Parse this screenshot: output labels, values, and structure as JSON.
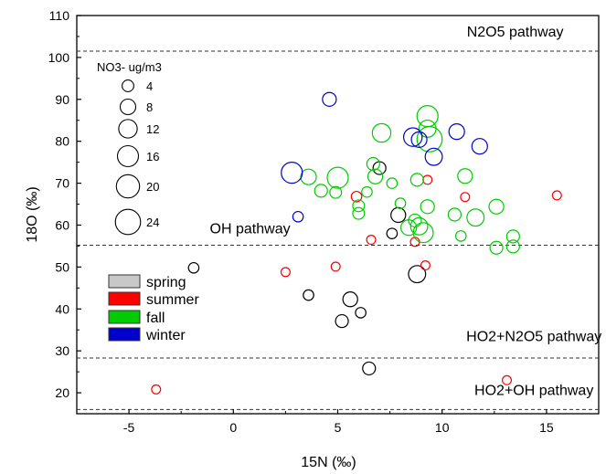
{
  "chart_data": {
    "type": "scatter",
    "title": "",
    "xlabel": "15N (‰)",
    "ylabel": "18O (‰)",
    "xlim": [
      -7.5,
      17.5
    ],
    "ylim": [
      15,
      110
    ],
    "x_ticks": [
      -5,
      0,
      5,
      10,
      15
    ],
    "y_ticks": [
      20,
      30,
      40,
      50,
      60,
      70,
      80,
      90,
      100,
      110
    ],
    "grid": false,
    "size_legend": {
      "title": "NO3- ug/m3",
      "placement": "top-left",
      "values": [
        4,
        8,
        12,
        16,
        20,
        24
      ],
      "labels": [
        "4",
        "8",
        "12",
        "16",
        "20",
        "24"
      ]
    },
    "legend": {
      "placement": "left",
      "entries": [
        {
          "name": "spring",
          "color": "#c8c8c8"
        },
        {
          "name": "summer",
          "color": "#ff0000"
        },
        {
          "name": "fall",
          "color": "#00cc00"
        },
        {
          "name": "winter",
          "color": "#0000cc"
        }
      ]
    },
    "reference_lines": [
      {
        "y": 101.5,
        "label": "N2O5 pathway",
        "label_x": 13.5,
        "label_y": 105
      },
      {
        "y": 55.2,
        "label": "OH pathway",
        "label_x": 0.8,
        "label_y": 58
      },
      {
        "y": 28.3,
        "label": "HO2+N2O5 pathway",
        "label_x": 14.4,
        "label_y": 32.3
      },
      {
        "y": 16,
        "label": "HO2+OH pathway",
        "label_x": 14.4,
        "label_y": 19.5
      }
    ],
    "series": [
      {
        "name": "spring",
        "stroke": "#000000",
        "points": [
          {
            "x": -1.9,
            "y": 49.8,
            "size": 3
          },
          {
            "x": 3.6,
            "y": 43.3,
            "size": 3
          },
          {
            "x": 5.2,
            "y": 37.1,
            "size": 5
          },
          {
            "x": 5.6,
            "y": 42.3,
            "size": 7
          },
          {
            "x": 6.1,
            "y": 39.1,
            "size": 3
          },
          {
            "x": 6.5,
            "y": 25.8,
            "size": 5
          },
          {
            "x": 7.0,
            "y": 73.6,
            "size": 5
          },
          {
            "x": 7.6,
            "y": 58.0,
            "size": 3
          },
          {
            "x": 7.9,
            "y": 62.4,
            "size": 7
          },
          {
            "x": 8.8,
            "y": 48.3,
            "size": 10
          }
        ]
      },
      {
        "name": "summer",
        "stroke": "#ff0000",
        "points": [
          {
            "x": -3.7,
            "y": 20.8,
            "size": 2
          },
          {
            "x": 2.5,
            "y": 48.8,
            "size": 2
          },
          {
            "x": 4.9,
            "y": 50.1,
            "size": 2
          },
          {
            "x": 5.9,
            "y": 66.8,
            "size": 3
          },
          {
            "x": 6.6,
            "y": 56.5,
            "size": 2
          },
          {
            "x": 8.7,
            "y": 56.0,
            "size": 2
          },
          {
            "x": 9.2,
            "y": 50.4,
            "size": 2
          },
          {
            "x": 9.3,
            "y": 70.8,
            "size": 2
          },
          {
            "x": 11.1,
            "y": 66.7,
            "size": 2
          },
          {
            "x": 13.1,
            "y": 23.0,
            "size": 2
          },
          {
            "x": 15.5,
            "y": 67.1,
            "size": 2
          }
        ]
      },
      {
        "name": "fall",
        "stroke": "#00cc00",
        "points": [
          {
            "x": 3.6,
            "y": 71.5,
            "size": 8
          },
          {
            "x": 4.2,
            "y": 68.2,
            "size": 5
          },
          {
            "x": 5.0,
            "y": 71.3,
            "size": 16
          },
          {
            "x": 4.9,
            "y": 67.8,
            "size": 4
          },
          {
            "x": 6.0,
            "y": 62.8,
            "size": 4
          },
          {
            "x": 6.0,
            "y": 64.6,
            "size": 4
          },
          {
            "x": 6.4,
            "y": 67.9,
            "size": 3
          },
          {
            "x": 6.7,
            "y": 74.6,
            "size": 5
          },
          {
            "x": 6.8,
            "y": 71.6,
            "size": 7
          },
          {
            "x": 7.1,
            "y": 82.0,
            "size": 12
          },
          {
            "x": 7.6,
            "y": 70.0,
            "size": 3
          },
          {
            "x": 8.0,
            "y": 65.2,
            "size": 3
          },
          {
            "x": 8.4,
            "y": 59.4,
            "size": 8
          },
          {
            "x": 8.7,
            "y": 61.1,
            "size": 5
          },
          {
            "x": 8.8,
            "y": 70.8,
            "size": 5
          },
          {
            "x": 8.9,
            "y": 59.7,
            "size": 10
          },
          {
            "x": 9.1,
            "y": 58.2,
            "size": 14
          },
          {
            "x": 9.3,
            "y": 64.4,
            "size": 6
          },
          {
            "x": 9.3,
            "y": 86.0,
            "size": 16
          },
          {
            "x": 9.4,
            "y": 80.5,
            "size": 24
          },
          {
            "x": 9.3,
            "y": 83.0,
            "size": 10
          },
          {
            "x": 10.6,
            "y": 62.5,
            "size": 5
          },
          {
            "x": 10.9,
            "y": 57.4,
            "size": 3
          },
          {
            "x": 11.1,
            "y": 71.7,
            "size": 7
          },
          {
            "x": 11.6,
            "y": 61.8,
            "size": 10
          },
          {
            "x": 12.6,
            "y": 54.6,
            "size": 5
          },
          {
            "x": 12.6,
            "y": 64.4,
            "size": 7
          },
          {
            "x": 13.4,
            "y": 57.3,
            "size": 5
          },
          {
            "x": 13.4,
            "y": 54.9,
            "size": 5
          }
        ]
      },
      {
        "name": "winter",
        "stroke": "#0000cc",
        "points": [
          {
            "x": 2.8,
            "y": 72.5,
            "size": 16
          },
          {
            "x": 3.1,
            "y": 62.0,
            "size": 3
          },
          {
            "x": 4.6,
            "y": 90.0,
            "size": 6
          },
          {
            "x": 8.6,
            "y": 81.0,
            "size": 12
          },
          {
            "x": 8.9,
            "y": 80.4,
            "size": 8
          },
          {
            "x": 9.6,
            "y": 76.3,
            "size": 10
          },
          {
            "x": 10.7,
            "y": 82.3,
            "size": 8
          },
          {
            "x": 11.8,
            "y": 78.8,
            "size": 8
          }
        ]
      }
    ]
  }
}
